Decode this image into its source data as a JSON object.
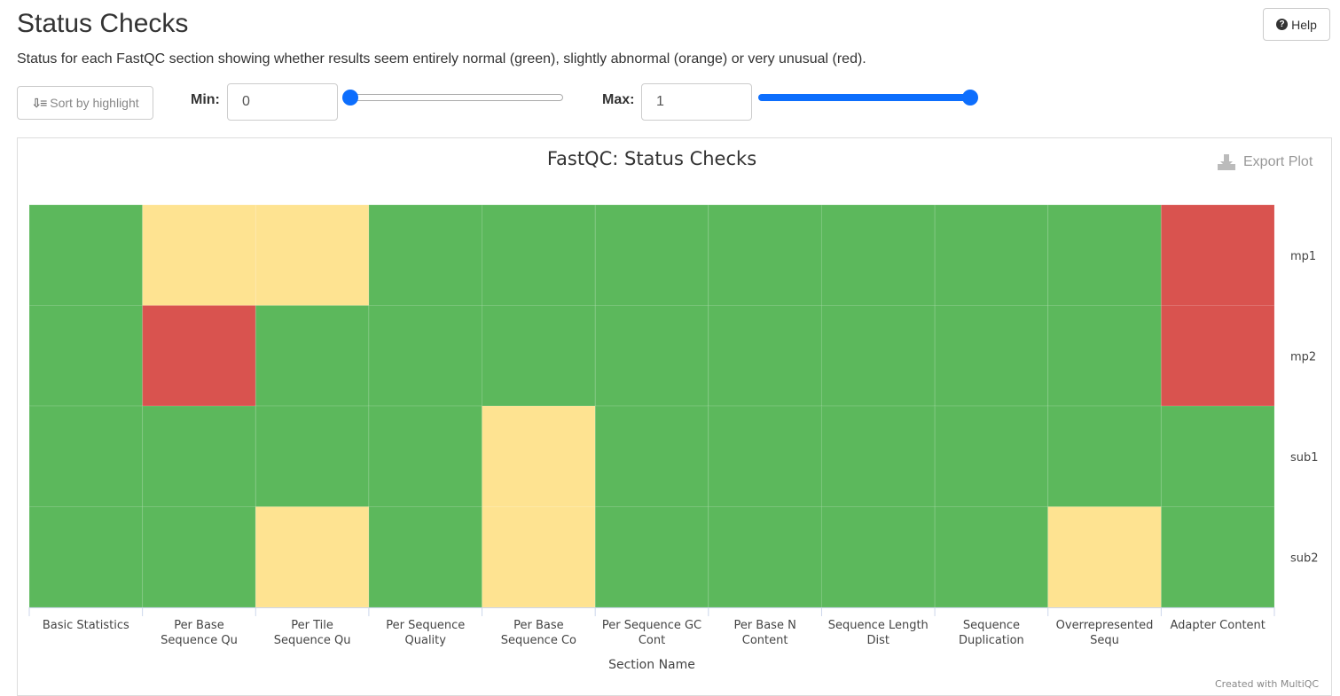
{
  "header": {
    "title": "Status Checks",
    "help_label": "Help",
    "description": "Status for each FastQC section showing whether results seem entirely normal (green), slightly abnormal (orange) or very unusual (red)."
  },
  "controls": {
    "sort_label": "Sort by highlight",
    "min_label": "Min:",
    "min_value": "0",
    "max_label": "Max:",
    "max_value": "1",
    "min_slider_fraction": 0,
    "max_slider_fraction": 1,
    "slider_color": "#0d6efd"
  },
  "plot": {
    "export_label": "Export Plot",
    "credit": "Created with MultiQC"
  },
  "colors": {
    "pass": "#5cb85c",
    "warn": "#fee391",
    "fail": "#d9534f"
  },
  "chart_data": {
    "type": "heatmap",
    "title": "FastQC: Status Checks",
    "xlabel": "Section Name",
    "ylabel": "",
    "x_categories": [
      [
        "Basic Statistics"
      ],
      [
        "Per Base",
        "Sequence Qu"
      ],
      [
        "Per Tile",
        "Sequence Qu"
      ],
      [
        "Per Sequence",
        "Quality"
      ],
      [
        "Per Base",
        "Sequence Co"
      ],
      [
        "Per Sequence GC",
        "Cont"
      ],
      [
        "Per Base N",
        "Content"
      ],
      [
        "Sequence Length",
        "Dist"
      ],
      [
        "Sequence",
        "Duplication"
      ],
      [
        "Overrepresented",
        "Sequ"
      ],
      [
        "Adapter Content"
      ]
    ],
    "y_categories": [
      "mp1",
      "mp2",
      "sub1",
      "sub2"
    ],
    "status_values": {
      "pass": 1,
      "warn": 0.5,
      "fail": 0.25
    },
    "values": [
      [
        1,
        0.5,
        0.5,
        1,
        1,
        1,
        1,
        1,
        1,
        1,
        0.25
      ],
      [
        1,
        0.25,
        1,
        1,
        1,
        1,
        1,
        1,
        1,
        1,
        0.25
      ],
      [
        1,
        1,
        1,
        1,
        0.5,
        1,
        1,
        1,
        1,
        1,
        1
      ],
      [
        1,
        1,
        0.5,
        1,
        0.5,
        1,
        1,
        1,
        1,
        0.5,
        1
      ]
    ],
    "legend": false
  }
}
